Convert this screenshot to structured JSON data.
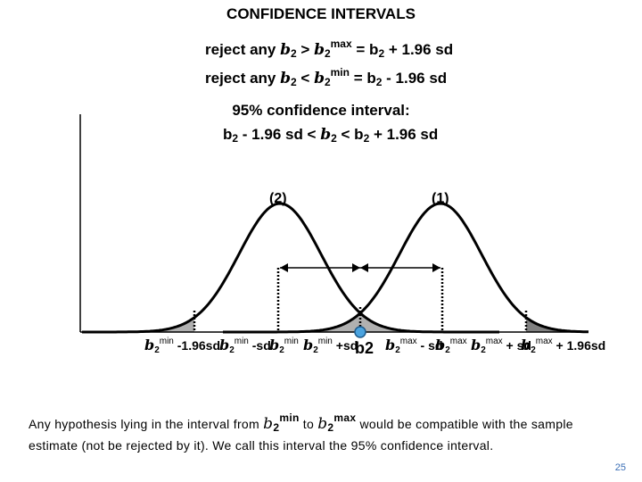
{
  "title": "CONFIDENCE INTERVALS",
  "reject_lines": {
    "line1": {
      "prefix": "reject any ",
      "b": "b",
      "sub": "2",
      "op": " > ",
      "b2": "b",
      "sub2": "2",
      "sup2": "max",
      "rest": " = b",
      "rest_sub": "2",
      "tail": " + 1.96 sd"
    },
    "line2": {
      "prefix": "reject any ",
      "b": "b",
      "sub": "2",
      "op": " < ",
      "b2": "b",
      "sub2": "2",
      "sup2": "min",
      "rest": " = b",
      "rest_sub": "2",
      "tail": " - 1.96 sd"
    }
  },
  "interval": {
    "heading": "95% confidence interval:",
    "formula": {
      "p1": "b",
      "p1_sub": "2",
      "p2": " - 1.96 sd < ",
      "beta": "b",
      "beta_sub": "2",
      "p3": " < b",
      "p3_sub": "2",
      "p4": " + 1.96 sd"
    }
  },
  "curve_labels": {
    "left": "(2)",
    "right": "(1)"
  },
  "axis_labels": [
    {
      "g": "b",
      "s": "min",
      "sb": "2",
      "text": " -1.96sd"
    },
    {
      "g": "b",
      "s": "min",
      "sb": "2",
      "text": " -sd"
    },
    {
      "g": "b",
      "s": "min",
      "sb": "2",
      "text": ""
    },
    {
      "g": "b",
      "s": "min",
      "sb": "2",
      "text": " +sd"
    },
    {
      "g": "",
      "s": "",
      "sb": "",
      "text": "b2"
    },
    {
      "g": "b",
      "s": "max",
      "sb": "2",
      "text": " - sd"
    },
    {
      "g": "b",
      "s": "max",
      "sb": "2",
      "text": ""
    },
    {
      "g": "b",
      "s": "max",
      "sb": "2",
      "text": " + sd"
    },
    {
      "g": "b",
      "s": "max",
      "sb": "2",
      "text": " + 1.96sd"
    }
  ],
  "bottom_text": {
    "p1": "Any hypothesis lying in the interval from ",
    "b1": "b",
    "s1": "2",
    "sup1": "min",
    "mid": " to ",
    "b2": "b",
    "s2": "2",
    "sup2": "max",
    "p2": " would be compatible with the sample estimate (not be rejected by it).  We call this interval the 95% confidence interval."
  },
  "page_number": "25",
  "colors": {
    "curve": "#000000",
    "shade": "#b0b0b0",
    "dark_shade": "#808080",
    "marker": "#4aa3df",
    "page_num": "#3b6fb6"
  }
}
